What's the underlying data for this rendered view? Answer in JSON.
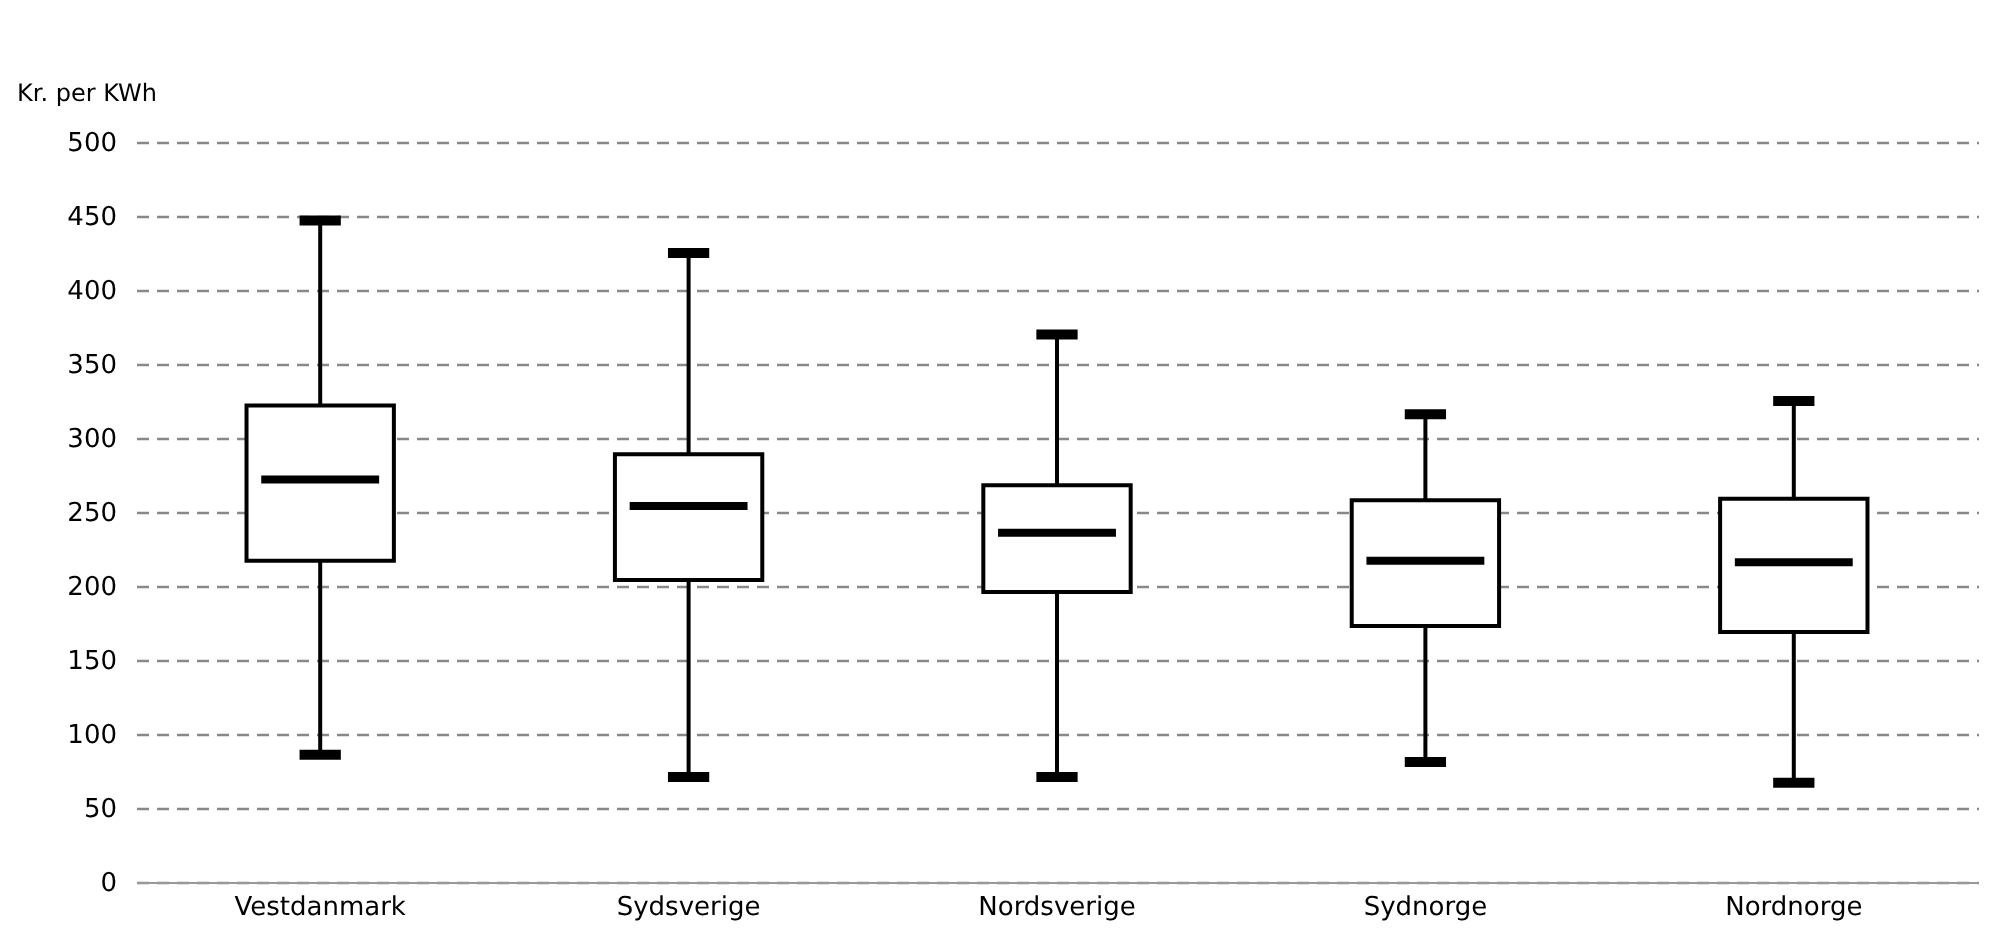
{
  "chart_data": {
    "type": "box",
    "ylabel": "Kr. per KWh",
    "categories": [
      "Vestdanmark",
      "Sydsverige",
      "Nordsverige",
      "Sydnorge",
      "Nordnorge"
    ],
    "boxes": [
      {
        "low": 86,
        "q1": 217,
        "median": 272,
        "q3": 322,
        "high": 447
      },
      {
        "low": 71,
        "q1": 204,
        "median": 254,
        "q3": 289,
        "high": 425
      },
      {
        "low": 71,
        "q1": 196,
        "median": 236,
        "q3": 268,
        "high": 370
      },
      {
        "low": 81,
        "q1": 173,
        "median": 217,
        "q3": 258,
        "high": 316
      },
      {
        "low": 67,
        "q1": 169,
        "median": 216,
        "q3": 259,
        "high": 325
      }
    ],
    "ylim": [
      0,
      500
    ],
    "yticks": [
      0,
      50,
      100,
      150,
      200,
      250,
      300,
      350,
      400,
      450,
      500
    ],
    "grid": "y"
  }
}
